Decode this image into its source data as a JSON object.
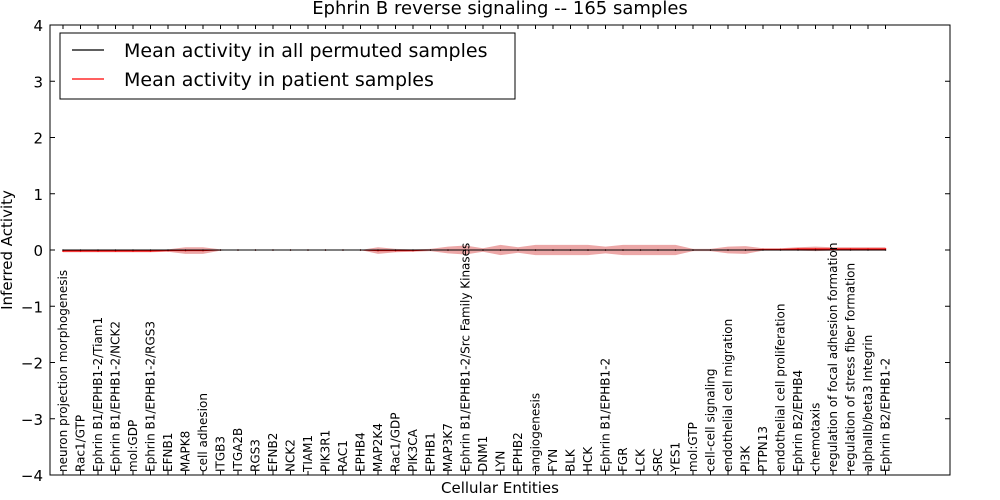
{
  "chart_data": {
    "type": "line",
    "title": "Ephrin B reverse signaling -- 165 samples",
    "xlabel": "Cellular Entities",
    "ylabel": "Inferred Activity",
    "ylim": [
      -4,
      4
    ],
    "yticks": [
      -4,
      -3,
      -2,
      -1,
      0,
      1,
      2,
      3,
      4
    ],
    "grid": false,
    "legend_position": "top-left",
    "categories": [
      "neuron projection morphogenesis",
      "Rac1/GTP",
      "Ephrin B1/EPHB1-2/Tiam1",
      "Ephrin B1/EPHB1-2/NCK2",
      "mol:GDP",
      "Ephrin B1/EPHB1-2/RGS3",
      "EFNB1",
      "MAPK8",
      "cell adhesion",
      "ITGB3",
      "ITGA2B",
      "RGS3",
      "EFNB2",
      "NCK2",
      "TIAM1",
      "PIK3R1",
      "RAC1",
      "EPHB4",
      "MAP2K4",
      "Rac1/GDP",
      "PIK3CA",
      "EPHB1",
      "MAP3K7",
      "Ephrin B1/EPHB1-2/Src Family Kinases",
      "DNM1",
      "LYN",
      "EPHB2",
      "angiogenesis",
      "FYN",
      "BLK",
      "HCK",
      "Ephrin B1/EPHB1-2",
      "FGR",
      "LCK",
      "SRC",
      "YES1",
      "mol:GTP",
      "cell-cell signaling",
      "endothelial cell migration",
      "PI3K",
      "PTPN13",
      "endothelial cell proliferation",
      "Ephrin B2/EPHB4",
      "chemotaxis",
      "regulation of focal adhesion formation",
      "regulation of stress fiber formation",
      "alphaIIb/beta3 Integrin",
      "Ephrin B2/EPHB1-2"
    ],
    "series": [
      {
        "name": "Mean activity in all permuted samples",
        "color": "#000000",
        "values": [
          0,
          0,
          0,
          0,
          0,
          0,
          0,
          0,
          0,
          0,
          0,
          0,
          0,
          0,
          0,
          0,
          0,
          0,
          0,
          0,
          0,
          0,
          0,
          0,
          0,
          0,
          0,
          0,
          0,
          0,
          0,
          0,
          0,
          0,
          0,
          0,
          0,
          0,
          0,
          0,
          0,
          0,
          0,
          0,
          0,
          0,
          0,
          0
        ]
      },
      {
        "name": "Mean activity in patient samples",
        "color": "#ff0000",
        "band_color": "#e58a8a",
        "values": [
          -0.02,
          -0.02,
          -0.02,
          -0.02,
          -0.02,
          -0.02,
          -0.01,
          -0.01,
          -0.01,
          0,
          0,
          0,
          0,
          0,
          0,
          0,
          0,
          0,
          -0.01,
          -0.01,
          -0.01,
          0,
          0,
          0,
          0,
          0,
          0,
          0,
          0,
          0,
          0,
          0,
          0,
          0,
          0,
          0,
          0,
          0,
          0,
          0,
          0.01,
          0.01,
          0.02,
          0.02,
          0.02,
          0.02,
          0.02,
          0.02
        ],
        "band": [
          0.02,
          0.02,
          0.02,
          0.02,
          0.02,
          0.02,
          0.02,
          0.06,
          0.06,
          0.01,
          0,
          0,
          0,
          0,
          0,
          0,
          0,
          0,
          0.06,
          0.03,
          0.02,
          0.02,
          0.06,
          0.08,
          0.03,
          0.09,
          0.05,
          0.09,
          0.09,
          0.09,
          0.09,
          0.06,
          0.09,
          0.09,
          0.09,
          0.09,
          0.02,
          0.02,
          0.06,
          0.07,
          0.02,
          0.02,
          0.03,
          0.04,
          0.03,
          0.03,
          0.03,
          0.03
        ]
      }
    ]
  }
}
